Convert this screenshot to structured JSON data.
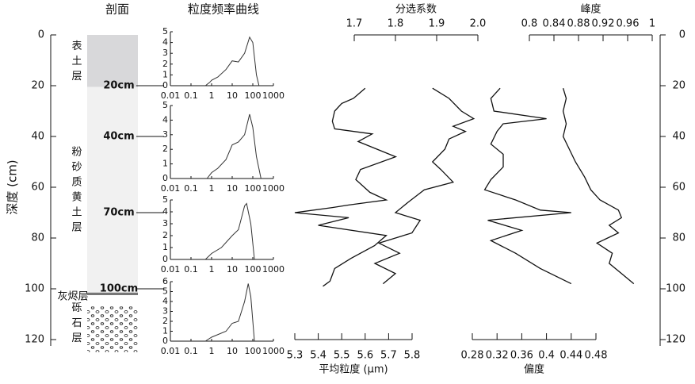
{
  "depth_axis": {
    "label": "深度 (cm)",
    "ylim": [
      0,
      120
    ],
    "yticks": [
      0,
      20,
      40,
      60,
      80,
      100,
      120
    ]
  },
  "section": {
    "title": "剖面",
    "layers": [
      {
        "name": "表土层",
        "top": 0,
        "bottom": 20.5,
        "fill": "#d8d8da"
      },
      {
        "name": "粉砂质黄土层",
        "top": 20.5,
        "bottom": 101.5,
        "fill": "#f1f1f1"
      },
      {
        "name": "灰烬层",
        "top": 101.5,
        "bottom": 102.5,
        "fill": "#777777"
      },
      {
        "name": "砾石层",
        "top": 107,
        "bottom": 125,
        "fill": "gravel"
      }
    ],
    "markers": [
      {
        "label": "20cm",
        "depth": 20
      },
      {
        "label": "40cm",
        "depth": 40
      },
      {
        "label": "70cm",
        "depth": 70
      },
      {
        "label": "100cm",
        "depth": 100
      }
    ]
  },
  "frequency_title": "粒度频率曲线",
  "chart_data": [
    {
      "type": "profile",
      "title": "平均粒度 (μm)",
      "axis_position": "bottom",
      "color": "#111",
      "xlim": [
        5.3,
        5.8
      ],
      "xticks": [
        5.3,
        5.4,
        5.5,
        5.6,
        5.7,
        5.8
      ],
      "y": [
        21,
        25,
        27,
        30,
        34,
        37,
        39,
        42,
        48,
        53,
        57,
        62,
        65,
        67,
        68,
        70,
        72,
        75,
        79,
        83,
        88,
        92,
        97,
        99
      ],
      "values": [
        5.6,
        5.55,
        5.5,
        5.47,
        5.46,
        5.47,
        5.63,
        5.57,
        5.73,
        5.58,
        5.56,
        5.62,
        5.69,
        5.53,
        5.46,
        5.3,
        5.53,
        5.4,
        5.69,
        5.64,
        5.54,
        5.47,
        5.45,
        5.42
      ]
    },
    {
      "type": "profile",
      "title": "分选系数",
      "axis_position": "top",
      "color": "#111",
      "xlim": [
        1.7,
        2.0
      ],
      "xticks": [
        1.7,
        1.8,
        1.9,
        {
          "value": 2,
          "label": "2.0"
        }
      ],
      "y": [
        21,
        25,
        30,
        33,
        36,
        38,
        41,
        45,
        50,
        53,
        58,
        61,
        66,
        70,
        73,
        78,
        82,
        86,
        90,
        94,
        98
      ],
      "values": [
        1.89,
        1.93,
        1.96,
        1.99,
        1.94,
        1.97,
        1.93,
        1.92,
        1.89,
        1.91,
        1.94,
        1.87,
        1.83,
        1.8,
        1.86,
        1.84,
        1.76,
        1.81,
        1.75,
        1.8,
        1.77
      ]
    },
    {
      "type": "profile",
      "title": "偏度",
      "axis_position": "bottom",
      "color": "#111",
      "xlim": [
        0.28,
        0.48
      ],
      "xticks": [
        0.28,
        0.32,
        0.36,
        0.4,
        0.44,
        0.48
      ],
      "y": [
        21,
        25,
        30,
        33,
        35,
        38,
        43,
        47,
        52,
        57,
        61,
        65,
        69,
        70,
        73,
        77,
        81,
        86,
        92,
        98
      ],
      "values": [
        0.325,
        0.31,
        0.315,
        0.4,
        0.33,
        0.32,
        0.31,
        0.33,
        0.33,
        0.31,
        0.3,
        0.35,
        0.39,
        0.44,
        0.305,
        0.36,
        0.31,
        0.35,
        0.39,
        0.44
      ]
    },
    {
      "type": "profile",
      "title": "峰度",
      "axis_position": "top",
      "color": "#111",
      "xlim": [
        0.8,
        1
      ],
      "xticks": [
        0.8,
        0.84,
        0.88,
        0.92,
        0.96,
        1
      ],
      "y": [
        21,
        25,
        30,
        35,
        40,
        45,
        50,
        56,
        61,
        65,
        69,
        72,
        75,
        78,
        82,
        86,
        90,
        94,
        98
      ],
      "values": [
        0.855,
        0.86,
        0.855,
        0.86,
        0.855,
        0.865,
        0.875,
        0.89,
        0.9,
        0.915,
        0.945,
        0.95,
        0.93,
        0.945,
        0.91,
        0.935,
        0.93,
        0.95,
        0.97
      ]
    },
    {
      "type": "frequency",
      "xscale": "log",
      "color": "#333",
      "xlim": [
        0.01,
        1000
      ],
      "xticks": [
        0.01,
        0.1,
        1,
        10,
        100,
        1000
      ],
      "ylim": [
        0,
        5
      ],
      "yticks": [
        0,
        1,
        2,
        3,
        4,
        5
      ],
      "x": [
        0.5,
        0.8,
        1,
        2,
        5,
        10,
        20,
        40,
        70,
        100,
        150,
        200
      ],
      "values": [
        0,
        0.3,
        0.5,
        0.8,
        1.5,
        2.3,
        2.2,
        3,
        4.5,
        4,
        1,
        0
      ]
    },
    {
      "type": "frequency",
      "xscale": "log",
      "color": "#333",
      "xlim": [
        0.01,
        1000
      ],
      "xticks": [
        0.01,
        0.1,
        1,
        10,
        100,
        1000
      ],
      "ylim": [
        0,
        5
      ],
      "yticks": [
        0,
        1,
        2,
        3,
        4,
        5
      ],
      "x": [
        0.6,
        1,
        2,
        5,
        10,
        20,
        40,
        70,
        100,
        150,
        250
      ],
      "values": [
        0,
        0.4,
        0.7,
        1.3,
        2.3,
        2.5,
        3,
        4.4,
        3.5,
        1.5,
        0
      ]
    },
    {
      "type": "frequency",
      "xscale": "log",
      "color": "#333",
      "xlim": [
        0.01,
        1000
      ],
      "xticks": [
        0.01,
        0.1,
        1,
        10,
        100,
        1000
      ],
      "ylim": [
        0,
        5
      ],
      "yticks": [
        0,
        1,
        2,
        3,
        4,
        5
      ],
      "x": [
        0.5,
        1,
        3,
        10,
        20,
        40,
        50,
        80,
        120
      ],
      "values": [
        0,
        0.5,
        1,
        2,
        2.5,
        4.5,
        4.7,
        3,
        0
      ]
    },
    {
      "type": "frequency",
      "xscale": "log",
      "color": "#333",
      "xlim": [
        0.01,
        1000
      ],
      "xticks": [
        0.01,
        0.1,
        1,
        10,
        100,
        1000
      ],
      "ylim": [
        0,
        6
      ],
      "yticks": [
        0,
        1,
        2,
        3,
        4,
        5,
        6
      ],
      "x": [
        0.5,
        1,
        5,
        10,
        20,
        40,
        60,
        80,
        120
      ],
      "values": [
        0,
        0.4,
        1,
        1.8,
        2,
        4,
        5.8,
        4.5,
        0
      ]
    }
  ]
}
